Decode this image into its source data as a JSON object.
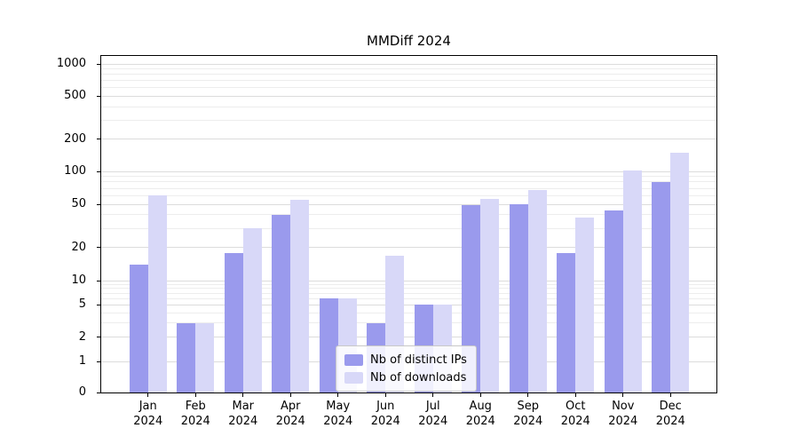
{
  "chart_data": {
    "type": "bar",
    "title": "MMDiff 2024",
    "scale": "symlog",
    "grid": "on",
    "legend_position": "lower center",
    "categories": [
      "Jan",
      "Feb",
      "Mar",
      "Apr",
      "May",
      "Jun",
      "Jul",
      "Aug",
      "Sep",
      "Oct",
      "Nov",
      "Dec"
    ],
    "year_label": "2024",
    "y_ticks": [
      0,
      1,
      2,
      5,
      10,
      20,
      50,
      100,
      200,
      500,
      1000
    ],
    "y_minor_ticks": [
      3,
      4,
      6,
      7,
      8,
      9,
      30,
      40,
      60,
      70,
      80,
      90,
      300,
      400,
      600,
      700,
      800,
      900
    ],
    "ylim": [
      0,
      1000
    ],
    "series": [
      {
        "name": "Nb of distinct IPs",
        "color": "#9a9aed",
        "values": [
          14,
          3,
          18,
          40,
          6,
          3,
          5,
          49,
          50,
          18,
          44,
          80
        ]
      },
      {
        "name": "Nb of downloads",
        "color": "#d8d8f8",
        "values": [
          60,
          3,
          30,
          55,
          6,
          17,
          5,
          56,
          68,
          38,
          102,
          150
        ]
      }
    ]
  }
}
